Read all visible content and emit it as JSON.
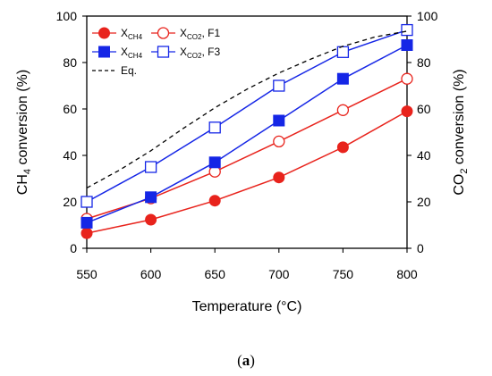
{
  "caption": {
    "open": "(",
    "letter": "a",
    "close": ")"
  },
  "chart_data": {
    "type": "line",
    "xlabel": "Temperature (°C)",
    "ylabel_left": {
      "main": "CH",
      "sub": "4",
      "rest": " conversion (%)"
    },
    "ylabel_right": {
      "main": "CO",
      "sub": "2",
      "rest": " conversion (%)"
    },
    "xlim": [
      550,
      800
    ],
    "ylim": [
      0,
      100
    ],
    "xticks": [
      550,
      600,
      650,
      700,
      750,
      800
    ],
    "yticks": [
      0,
      20,
      40,
      60,
      80,
      100
    ],
    "x": [
      550,
      600,
      650,
      700,
      750,
      800
    ],
    "grid": false,
    "legend_position": "top-left",
    "colors": {
      "red": "#e8231c",
      "blue": "#1526e6",
      "eq": "#000000"
    },
    "series": [
      {
        "key": "xch4_f1",
        "legend": {
          "main": "X",
          "sub": "CH4",
          "suffix": ""
        },
        "color": "red",
        "marker": "filled-circle",
        "values": [
          6.5,
          12.3,
          20.5,
          30.5,
          43.5,
          59
        ]
      },
      {
        "key": "xco2_f1",
        "legend": {
          "main": "X",
          "sub": "CO2",
          "suffix": ", F1"
        },
        "color": "red",
        "marker": "open-circle",
        "values": [
          12.7,
          21.5,
          33,
          46,
          59.5,
          73
        ]
      },
      {
        "key": "xch4_f3",
        "legend": {
          "main": "X",
          "sub": "CH4",
          "suffix": ""
        },
        "color": "blue",
        "marker": "filled-square",
        "values": [
          11,
          22,
          37,
          55,
          73,
          87.5
        ]
      },
      {
        "key": "xco2_f3",
        "legend": {
          "main": "X",
          "sub": "CO2",
          "suffix": ", F3"
        },
        "color": "blue",
        "marker": "open-square",
        "values": [
          20,
          35,
          52,
          70,
          84.5,
          94
        ]
      },
      {
        "key": "eq",
        "legend": {
          "main": "Eq.",
          "sub": "",
          "suffix": ""
        },
        "color": "eq",
        "marker": "dashed-line",
        "x": [
          550,
          575,
          600,
          625,
          650,
          675,
          700,
          725,
          750,
          775,
          800
        ],
        "values": [
          26,
          33.5,
          42,
          51.5,
          60.5,
          68.5,
          75.5,
          81.5,
          87,
          91,
          93.5
        ]
      }
    ]
  }
}
